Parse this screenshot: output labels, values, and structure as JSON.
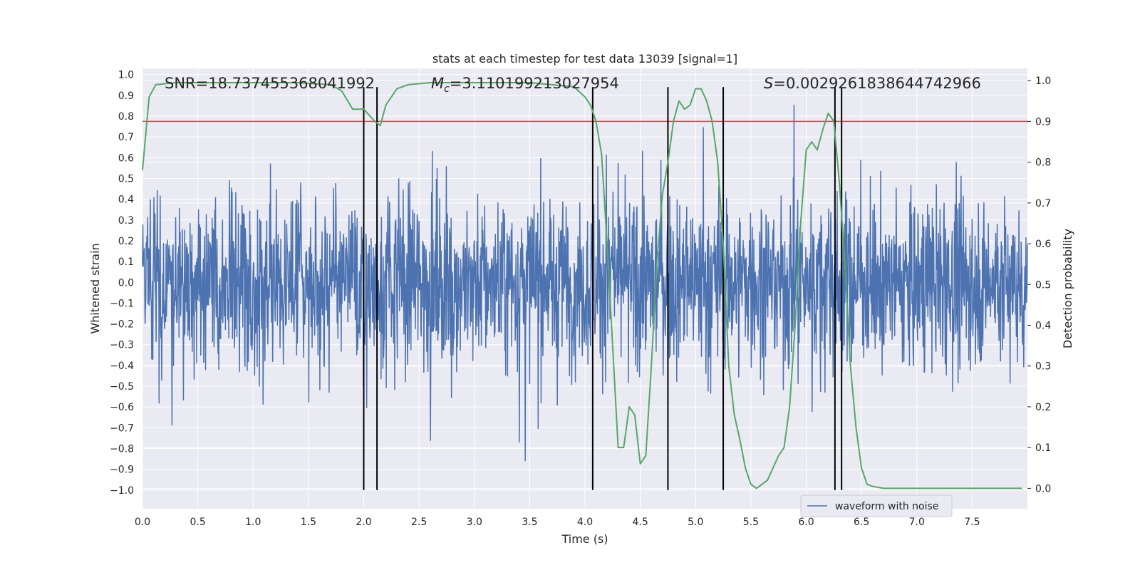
{
  "chart_data": {
    "type": "line",
    "title": "stats at each timestep for test data 13039 [signal=1]",
    "xlabel": "Time (s)",
    "ylabel_left": "Whitened strain",
    "ylabel_right": "Detection probability",
    "xlim": [
      0.0,
      8.0
    ],
    "ylim_left": [
      -1.09,
      1.03
    ],
    "ylim_right": [
      -0.05,
      1.03
    ],
    "x_ticks": [
      "0.0",
      "0.5",
      "1.0",
      "1.5",
      "2.0",
      "2.5",
      "3.0",
      "3.5",
      "4.0",
      "4.5",
      "5.0",
      "5.5",
      "6.0",
      "6.5",
      "7.0",
      "7.5"
    ],
    "y_ticks_left": [
      "1.0",
      "0.9",
      "0.8",
      "0.7",
      "0.6",
      "0.5",
      "0.4",
      "0.3",
      "0.2",
      "0.1",
      "0.0",
      "-0.1",
      "-0.2",
      "-0.3",
      "-0.4",
      "-0.5",
      "-0.6",
      "-0.7",
      "-0.8",
      "-0.9",
      "-1.0"
    ],
    "y_ticks_right": [
      "1.0",
      "0.9",
      "0.8",
      "0.7",
      "0.6",
      "0.5",
      "0.4",
      "0.3",
      "0.2",
      "0.1",
      "0.0"
    ],
    "annotations": {
      "snr": "SNR=18.737455368041992",
      "mc_symbol": "M",
      "mc_sub": "c",
      "mc_value": "=3.110199213027954",
      "s_symbol": "S",
      "s_value": "=0.0029261838644742966"
    },
    "series": [
      {
        "name": "waveform with noise",
        "color": "#4c72b0",
        "type": "noise",
        "amplitude_range": [
          -1.0,
          0.9
        ]
      },
      {
        "color": "#55a868",
        "axis": "right",
        "x": [
          0.0,
          0.06,
          0.12,
          0.3,
          0.6,
          1.0,
          1.4,
          1.7,
          1.8,
          1.9,
          2.0,
          2.1,
          2.15,
          2.2,
          2.3,
          2.4,
          2.6,
          3.0,
          3.5,
          3.9,
          4.0,
          4.05,
          4.1,
          4.15,
          4.2,
          4.25,
          4.3,
          4.35,
          4.4,
          4.45,
          4.5,
          4.55,
          4.6,
          4.65,
          4.7,
          4.75,
          4.8,
          4.85,
          4.9,
          4.95,
          5.0,
          5.05,
          5.1,
          5.15,
          5.2,
          5.25,
          5.3,
          5.35,
          5.4,
          5.45,
          5.5,
          5.55,
          5.6,
          5.65,
          5.7,
          5.75,
          5.8,
          5.85,
          5.9,
          5.95,
          6.0,
          6.05,
          6.1,
          6.15,
          6.2,
          6.25,
          6.3,
          6.35,
          6.4,
          6.45,
          6.5,
          6.55,
          6.6,
          6.7,
          6.8,
          7.0,
          7.2,
          7.5,
          7.8,
          7.95
        ],
        "y": [
          0.78,
          0.96,
          0.99,
          0.995,
          0.995,
          0.995,
          0.995,
          0.99,
          0.975,
          0.93,
          0.93,
          0.9,
          0.89,
          0.94,
          0.98,
          0.99,
          0.995,
          0.995,
          0.995,
          0.985,
          0.96,
          0.94,
          0.9,
          0.82,
          0.6,
          0.35,
          0.1,
          0.1,
          0.2,
          0.18,
          0.06,
          0.08,
          0.3,
          0.55,
          0.72,
          0.8,
          0.9,
          0.95,
          0.93,
          0.94,
          0.98,
          0.98,
          0.95,
          0.9,
          0.8,
          0.6,
          0.3,
          0.18,
          0.12,
          0.05,
          0.01,
          0.0,
          0.01,
          0.02,
          0.05,
          0.08,
          0.1,
          0.2,
          0.4,
          0.65,
          0.83,
          0.85,
          0.83,
          0.88,
          0.92,
          0.9,
          0.75,
          0.55,
          0.3,
          0.15,
          0.05,
          0.01,
          0.005,
          0.0,
          0.0,
          0.0,
          0.0,
          0.0,
          0.0,
          0.0
        ]
      },
      {
        "color": "#c44e52",
        "axis": "right",
        "type": "threshold",
        "value": 0.9
      }
    ],
    "vertical_lines_x": [
      2.0,
      2.12,
      4.07,
      4.75,
      5.25,
      6.26,
      6.32
    ],
    "legend": {
      "labels": [
        "waveform with noise"
      ],
      "placement": "bottom-right"
    },
    "grid": true
  }
}
